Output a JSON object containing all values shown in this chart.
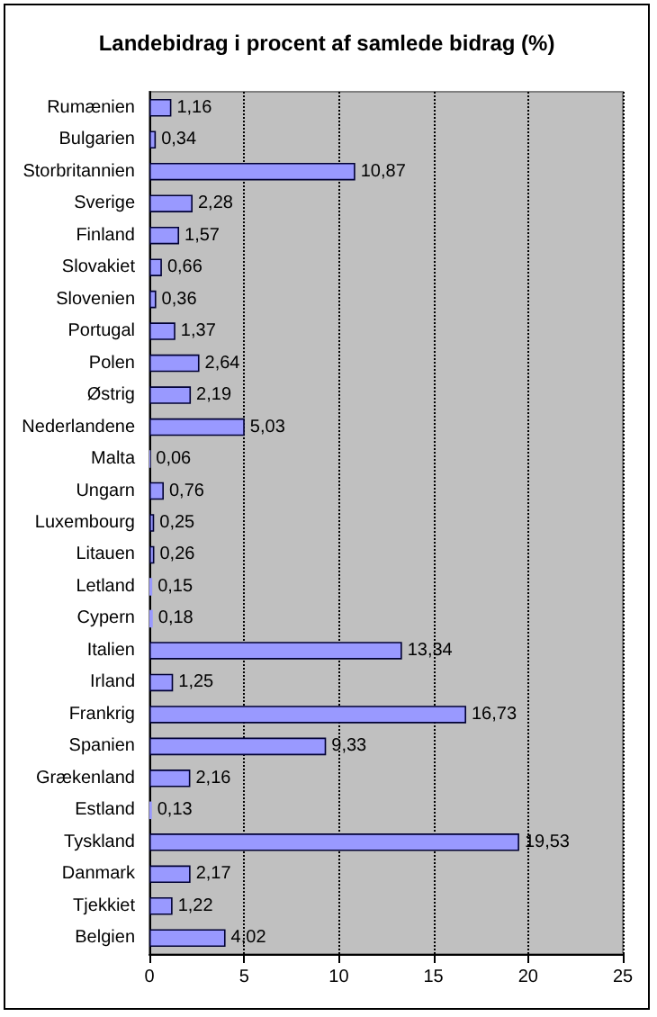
{
  "chart_data": {
    "type": "bar",
    "orientation": "horizontal",
    "title": "Landebidrag i procent af samlede bidrag (%)",
    "categories": [
      "Rumænien",
      "Bulgarien",
      "Storbritannien",
      "Sverige",
      "Finland",
      "Slovakiet",
      "Slovenien",
      "Portugal",
      "Polen",
      "Østrig",
      "Nederlandene",
      "Malta",
      "Ungarn",
      "Luxembourg",
      "Litauen",
      "Letland",
      "Cypern",
      "Italien",
      "Irland",
      "Frankrig",
      "Spanien",
      "Grækenland",
      "Estland",
      "Tyskland",
      "Danmark",
      "Tjekkiet",
      "Belgien"
    ],
    "values": [
      1.16,
      0.34,
      10.87,
      2.28,
      1.57,
      0.66,
      0.36,
      1.37,
      2.64,
      2.19,
      5.03,
      0.06,
      0.76,
      0.25,
      0.26,
      0.15,
      0.18,
      13.34,
      1.25,
      16.73,
      9.33,
      2.16,
      0.13,
      19.53,
      2.17,
      1.22,
      4.02
    ],
    "value_labels": [
      "1,16",
      "0,34",
      "10,87",
      "2,28",
      "1,57",
      "0,66",
      "0,36",
      "1,37",
      "2,64",
      "2,19",
      "5,03",
      "0,06",
      "0,76",
      "0,25",
      "0,26",
      "0,15",
      "0,18",
      "13,34",
      "1,25",
      "16,73",
      "9,33",
      "2,16",
      "0,13",
      "19,53",
      "2,17",
      "1,22",
      "4,02"
    ],
    "color": "#9999ff",
    "xlim": [
      0,
      25
    ],
    "xticks": [
      0,
      5,
      10,
      15,
      20,
      25
    ],
    "grid": "x"
  }
}
